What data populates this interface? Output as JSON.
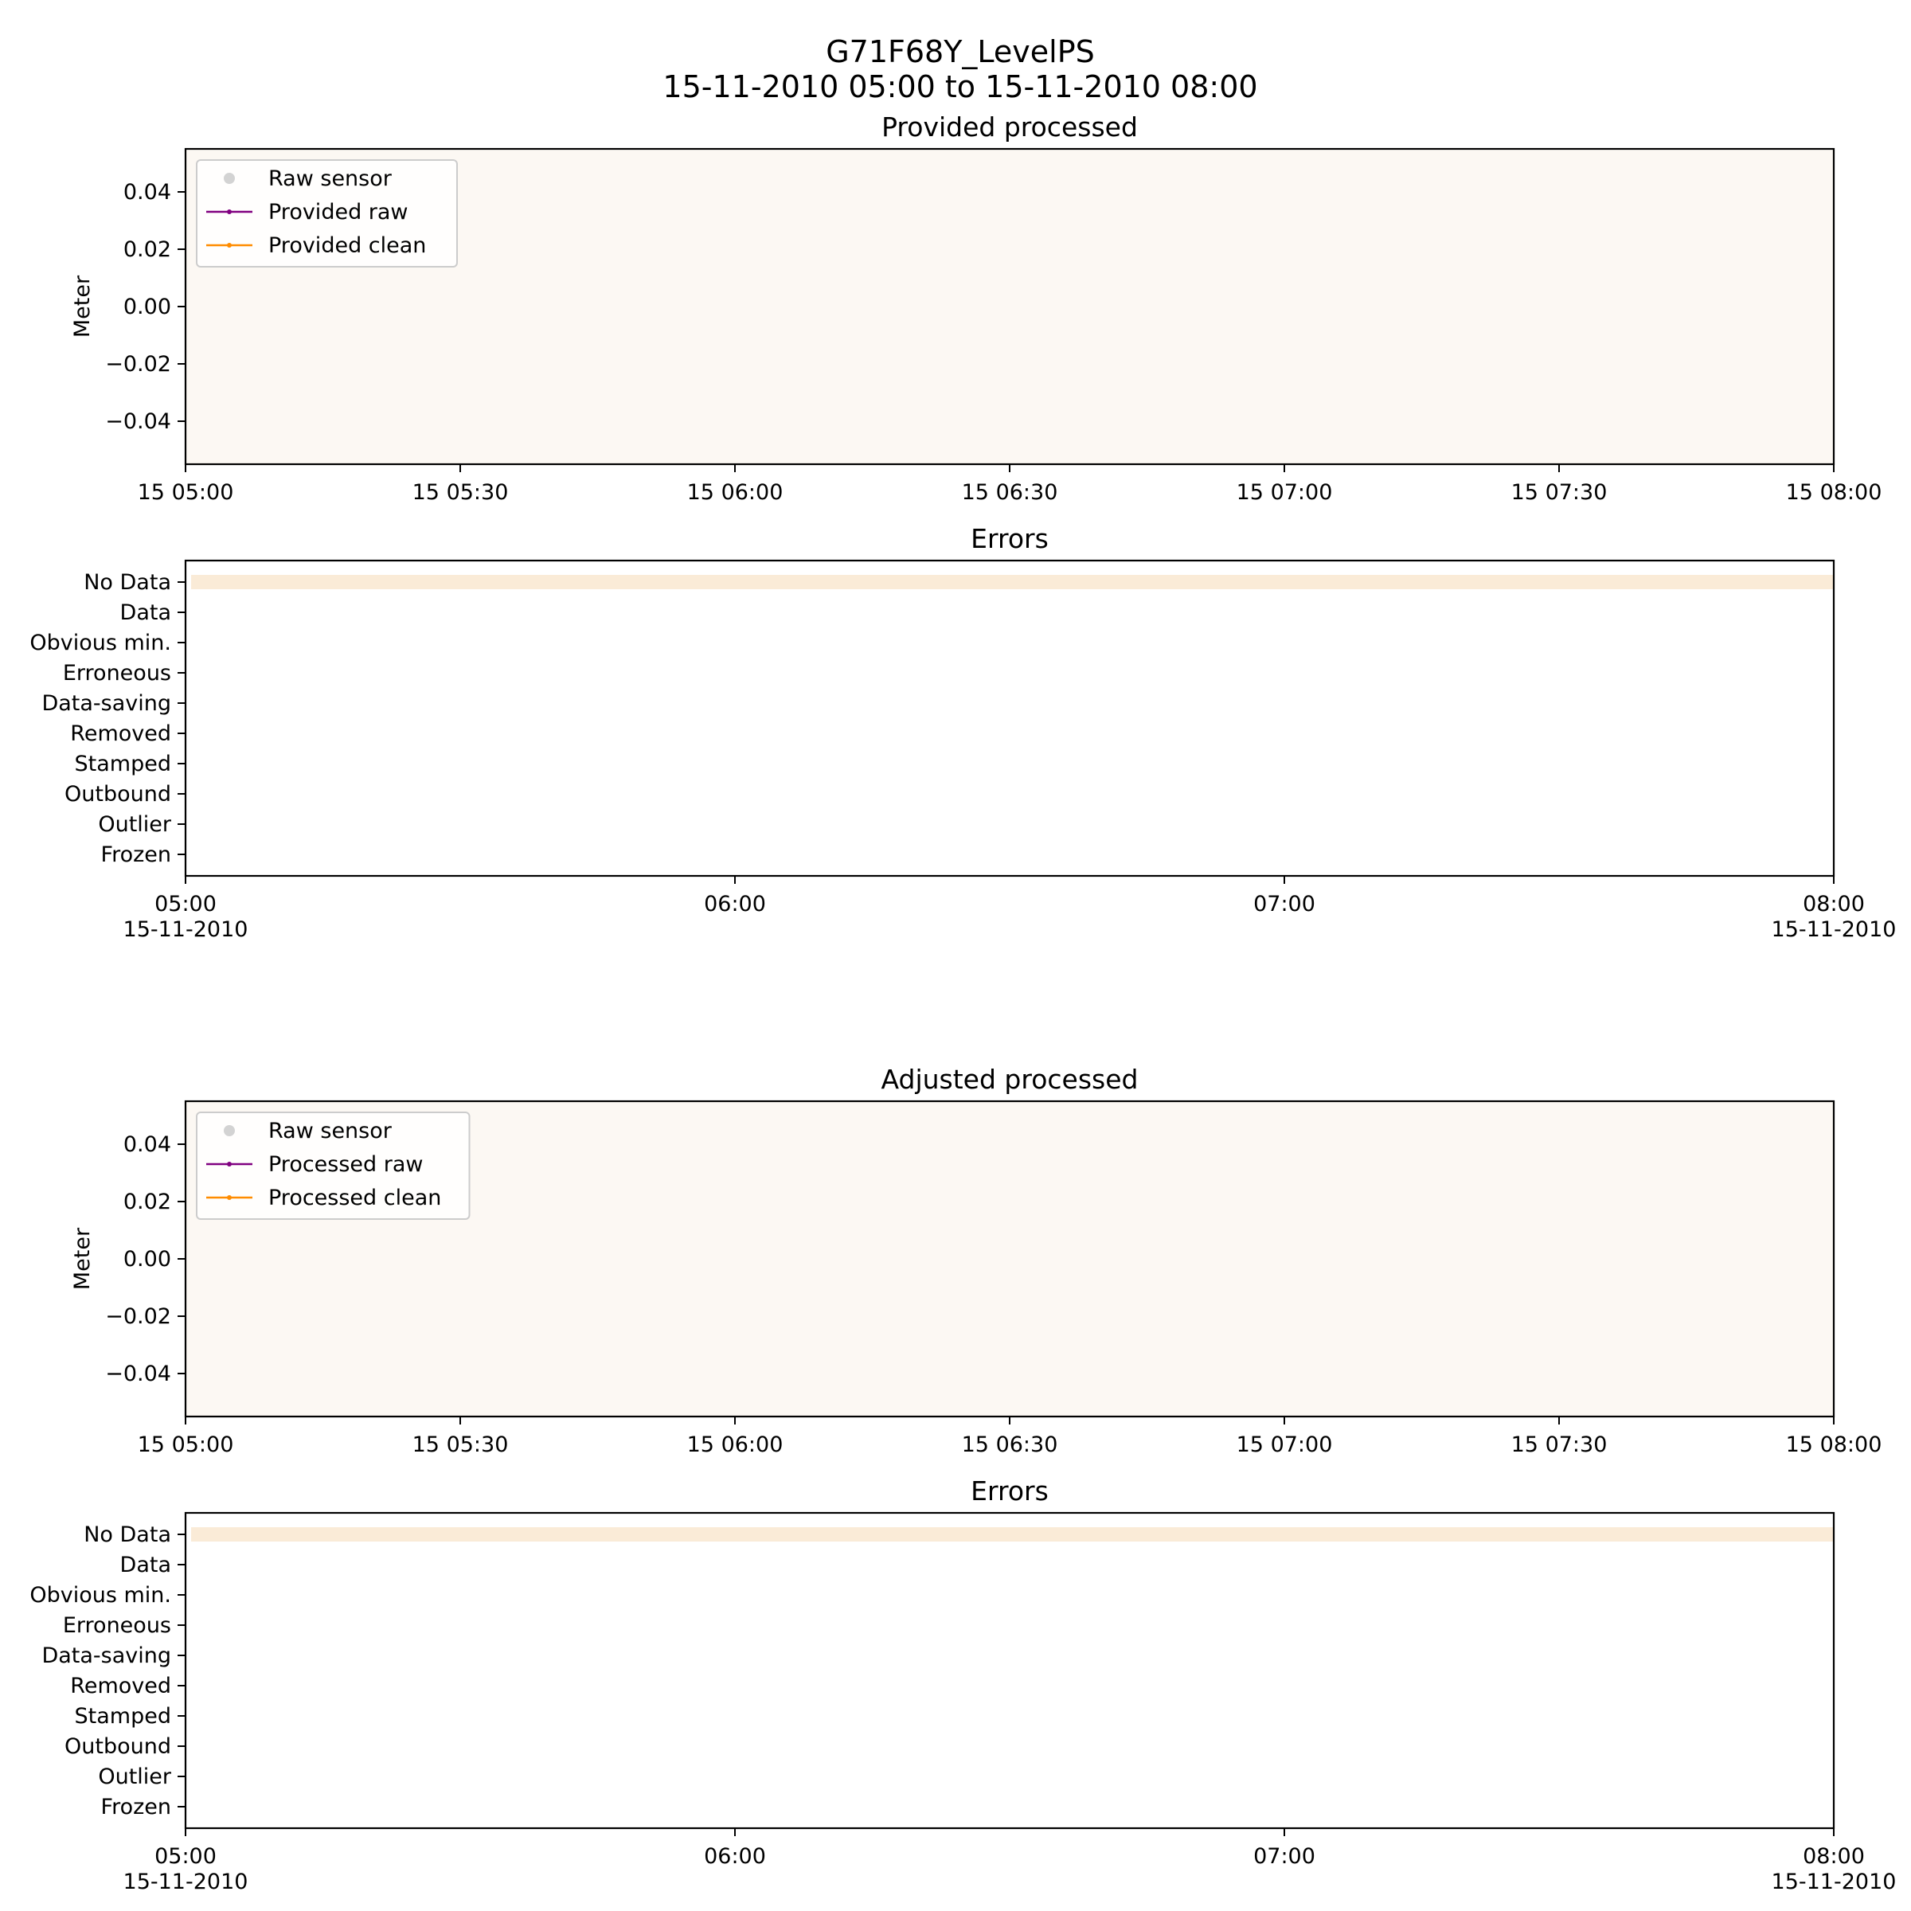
{
  "figure": {
    "title_line1": "G71F68Y_LevelPS",
    "title_line2": "15-11-2010 05:00 to 15-11-2010 08:00"
  },
  "colors": {
    "no_data_fill": "#fcf8f3",
    "no_data_band": "#faebd7",
    "raw_sensor": "#d3d3d3",
    "raw": "#800080",
    "clean": "#ff8c00"
  },
  "chart_data": [
    {
      "type": "line",
      "title": "Provided processed",
      "ylabel": "Meter",
      "xlim": [
        "2010-11-15 05:00",
        "2010-11-15 08:00"
      ],
      "ylim": [
        -0.055,
        0.055
      ],
      "yticks": [
        0.04,
        0.02,
        0.0,
        -0.02,
        -0.04
      ],
      "ytick_labels": [
        "0.04",
        "0.02",
        "0.00",
        "−0.02",
        "−0.04"
      ],
      "xticks": [
        "2010-11-15 05:00",
        "2010-11-15 05:30",
        "2010-11-15 06:00",
        "2010-11-15 06:30",
        "2010-11-15 07:00",
        "2010-11-15 07:30",
        "2010-11-15 08:00"
      ],
      "xtick_labels": [
        "15 05:00",
        "15 05:30",
        "15 06:00",
        "15 06:30",
        "15 07:00",
        "15 07:30",
        "15 08:00"
      ],
      "legend_position": "top-left",
      "legend": [
        {
          "label": "Raw sensor",
          "marker": "dot",
          "color": "#d3d3d3"
        },
        {
          "label": "Provided raw",
          "marker": "line",
          "color": "#800080"
        },
        {
          "label": "Provided clean",
          "marker": "line",
          "color": "#ff8c00"
        }
      ],
      "series": [
        {
          "name": "Raw sensor",
          "values": []
        },
        {
          "name": "Provided raw",
          "values": []
        },
        {
          "name": "Provided clean",
          "values": []
        }
      ],
      "no_data_shading": {
        "start": "2010-11-15 05:00",
        "end": "2010-11-15 08:00"
      }
    },
    {
      "type": "bar",
      "title": "Errors",
      "categories": [
        "No Data",
        "Data",
        "Obvious min.",
        "Erroneous",
        "Data-saving",
        "Removed",
        "Stamped",
        "Outbound",
        "Outlier",
        "Frozen"
      ],
      "xlim": [
        "2010-11-15 05:00",
        "2010-11-15 08:00"
      ],
      "xticks": [
        "2010-11-15 05:00",
        "2010-11-15 06:00",
        "2010-11-15 07:00",
        "2010-11-15 08:00"
      ],
      "xtick_labels": [
        [
          "05:00",
          "15-11-2010"
        ],
        [
          "06:00",
          ""
        ],
        [
          "07:00",
          ""
        ],
        [
          "08:00",
          "15-11-2010"
        ]
      ],
      "intervals": [
        {
          "category": "No Data",
          "start": "2010-11-15 05:00",
          "end": "2010-11-15 08:00"
        }
      ]
    },
    {
      "type": "line",
      "title": "Adjusted processed",
      "ylabel": "Meter",
      "xlim": [
        "2010-11-15 05:00",
        "2010-11-15 08:00"
      ],
      "ylim": [
        -0.055,
        0.055
      ],
      "yticks": [
        0.04,
        0.02,
        0.0,
        -0.02,
        -0.04
      ],
      "ytick_labels": [
        "0.04",
        "0.02",
        "0.00",
        "−0.02",
        "−0.04"
      ],
      "xticks": [
        "2010-11-15 05:00",
        "2010-11-15 05:30",
        "2010-11-15 06:00",
        "2010-11-15 06:30",
        "2010-11-15 07:00",
        "2010-11-15 07:30",
        "2010-11-15 08:00"
      ],
      "xtick_labels": [
        "15 05:00",
        "15 05:30",
        "15 06:00",
        "15 06:30",
        "15 07:00",
        "15 07:30",
        "15 08:00"
      ],
      "legend_position": "top-left",
      "legend": [
        {
          "label": "Raw sensor",
          "marker": "dot",
          "color": "#d3d3d3"
        },
        {
          "label": "Processed raw",
          "marker": "line",
          "color": "#800080"
        },
        {
          "label": "Processed clean",
          "marker": "line",
          "color": "#ff8c00"
        }
      ],
      "series": [
        {
          "name": "Raw sensor",
          "values": []
        },
        {
          "name": "Processed raw",
          "values": []
        },
        {
          "name": "Processed clean",
          "values": []
        }
      ],
      "no_data_shading": {
        "start": "2010-11-15 05:00",
        "end": "2010-11-15 08:00"
      }
    },
    {
      "type": "bar",
      "title": "Errors",
      "categories": [
        "No Data",
        "Data",
        "Obvious min.",
        "Erroneous",
        "Data-saving",
        "Removed",
        "Stamped",
        "Outbound",
        "Outlier",
        "Frozen"
      ],
      "xlim": [
        "2010-11-15 05:00",
        "2010-11-15 08:00"
      ],
      "xticks": [
        "2010-11-15 05:00",
        "2010-11-15 06:00",
        "2010-11-15 07:00",
        "2010-11-15 08:00"
      ],
      "xtick_labels": [
        [
          "05:00",
          "15-11-2010"
        ],
        [
          "06:00",
          ""
        ],
        [
          "07:00",
          ""
        ],
        [
          "08:00",
          "15-11-2010"
        ]
      ],
      "intervals": [
        {
          "category": "No Data",
          "start": "2010-11-15 05:00",
          "end": "2010-11-15 08:00"
        }
      ]
    }
  ]
}
